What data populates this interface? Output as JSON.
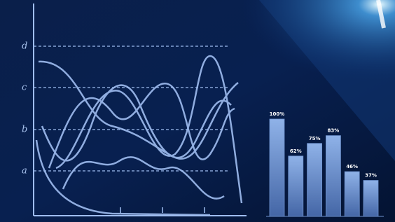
{
  "left_chart": {
    "y_labels": [
      "d",
      "c",
      "b",
      "a"
    ]
  },
  "chart_data": {
    "type": "bar",
    "categories": [
      null,
      null,
      null,
      null,
      null,
      null
    ],
    "values": [
      100,
      62,
      75,
      83,
      46,
      37
    ],
    "value_labels": [
      "100%",
      "62%",
      "75%",
      "83%",
      "46%",
      "37%"
    ],
    "color": "#6f93cf",
    "ylim": [
      0,
      100
    ]
  }
}
